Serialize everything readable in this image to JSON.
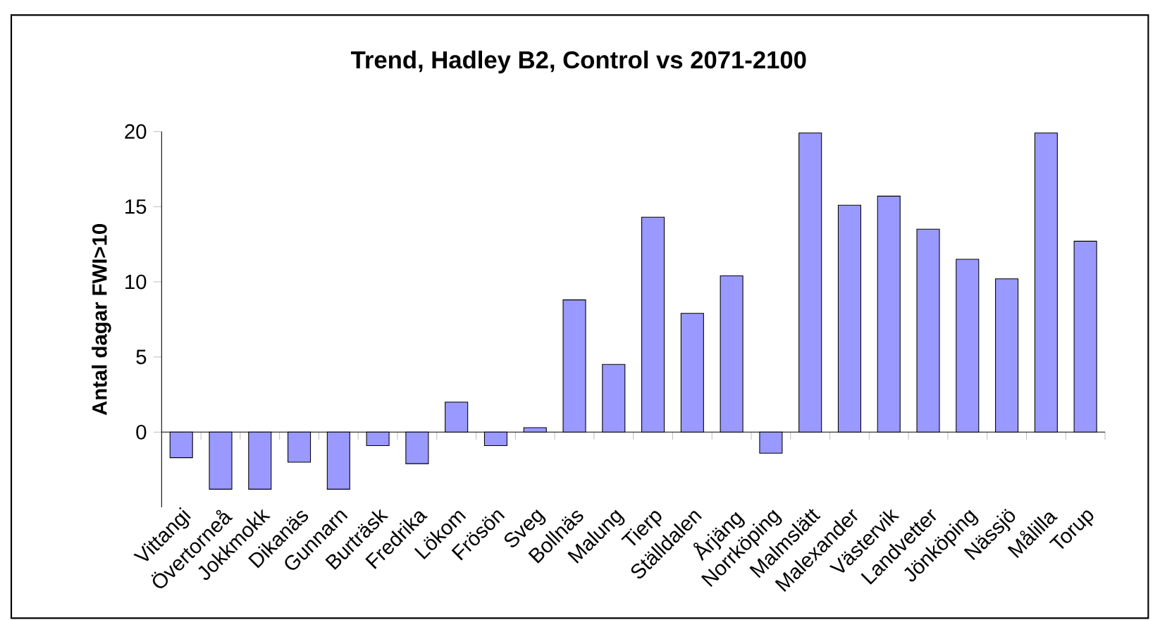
{
  "chart_data": {
    "type": "bar",
    "title": "Trend, Hadley B2, Control vs 2071-2100",
    "ylabel": "Antal dagar FWI>10",
    "categories": [
      "Vittangi",
      "Övertorneå",
      "Jokkmokk",
      "Dikanäs",
      "Gunnarn",
      "Burträsk",
      "Fredrika",
      "Lökom",
      "Frösön",
      "Sveg",
      "Bollnäs",
      "Malung",
      "Tierp",
      "Ställdalen",
      "Årjäng",
      "Norrköping",
      "Malmslätt",
      "Malexander",
      "Västervik",
      "Landvetter",
      "Jönköping",
      "Nässjö",
      "Målilla",
      "Torup"
    ],
    "values": [
      -1.7,
      -3.8,
      -3.8,
      -2.0,
      -3.8,
      -0.9,
      -2.1,
      2.0,
      -0.9,
      0.3,
      8.8,
      4.5,
      14.3,
      7.9,
      10.4,
      -1.4,
      19.9,
      15.1,
      15.7,
      13.5,
      11.5,
      10.2,
      19.9,
      12.7
    ],
    "color": "#9999ff",
    "ylim": [
      -5,
      20
    ],
    "yticks": [
      0,
      5,
      10,
      15,
      20
    ]
  }
}
